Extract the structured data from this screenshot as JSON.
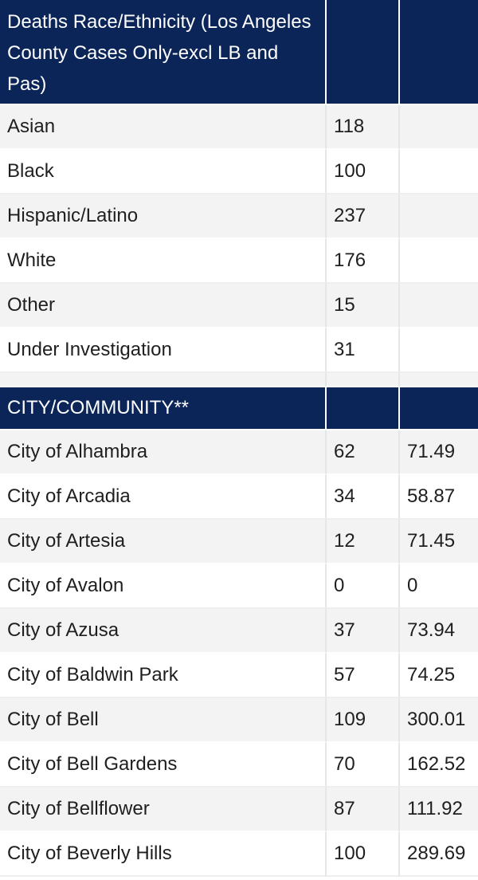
{
  "race_section": {
    "header": {
      "label": "Deaths Race/Ethnicity (Los Angeles County Cases Only-excl LB and Pas)",
      "col2": "",
      "col3": ""
    },
    "rows": [
      {
        "label": "Asian",
        "count": "118",
        "rate": ""
      },
      {
        "label": "Black",
        "count": "100",
        "rate": ""
      },
      {
        "label": "Hispanic/Latino",
        "count": "237",
        "rate": ""
      },
      {
        "label": "White",
        "count": "176",
        "rate": ""
      },
      {
        "label": "Other",
        "count": "15",
        "rate": ""
      },
      {
        "label": "Under Investigation",
        "count": "31",
        "rate": ""
      }
    ]
  },
  "city_section": {
    "header": {
      "label": "CITY/COMMUNITY**",
      "col2": "",
      "col3": ""
    },
    "rows": [
      {
        "label": "City of Alhambra",
        "count": "62",
        "rate": "71.49"
      },
      {
        "label": "City of Arcadia",
        "count": "34",
        "rate": "58.87"
      },
      {
        "label": "City of Artesia",
        "count": "12",
        "rate": "71.45"
      },
      {
        "label": "City of Avalon",
        "count": "0",
        "rate": "0"
      },
      {
        "label": "City of Azusa",
        "count": "37",
        "rate": "73.94"
      },
      {
        "label": "City of Baldwin Park",
        "count": "57",
        "rate": "74.25"
      },
      {
        "label": "City of Bell",
        "count": "109",
        "rate": "300.01"
      },
      {
        "label": "City of Bell Gardens",
        "count": "70",
        "rate": "162.52"
      },
      {
        "label": "City of Bellflower",
        "count": "87",
        "rate": "111.92"
      },
      {
        "label": "City of Beverly Hills",
        "count": "100",
        "rate": "289.69"
      }
    ]
  },
  "colors": {
    "header_bg": "#0b2559",
    "header_text": "#ffffff",
    "row_shade": "#f3f3f3",
    "row_plain": "#ffffff"
  }
}
